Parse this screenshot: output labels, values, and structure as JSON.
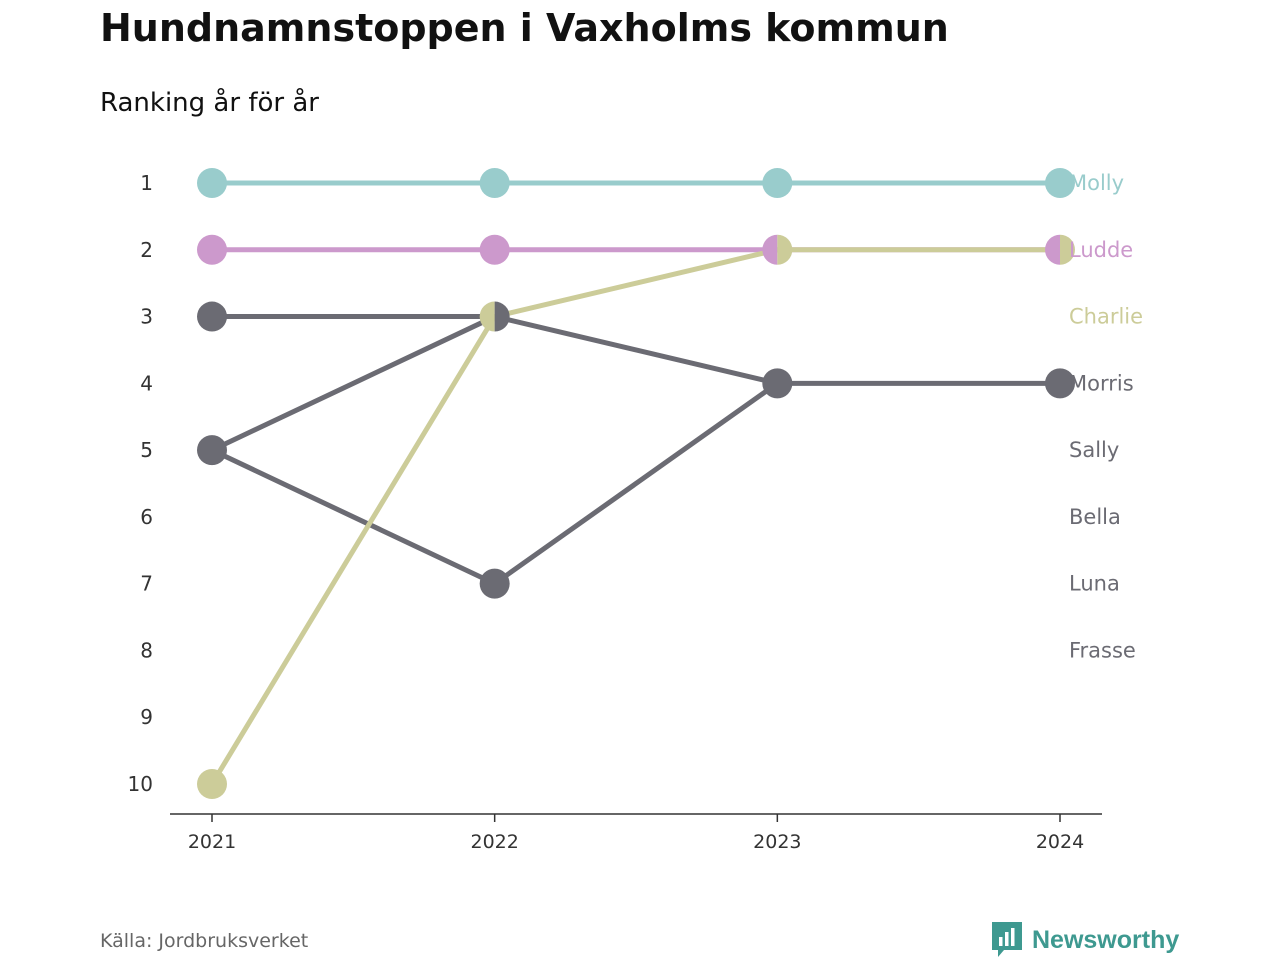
{
  "title": "Hundnamnstoppen i Vaxholms kommun",
  "subtitle": "Ranking år för år",
  "source": "Källa: Jordbruksverket",
  "brand": {
    "name": "Newsworthy",
    "icon": "newsworthy-logo-icon",
    "color": "#3e9990"
  },
  "chart_data": {
    "type": "line",
    "x": [
      2021,
      2022,
      2023,
      2024
    ],
    "x_tick_labels": [
      "2021",
      "2022",
      "2023",
      "2024"
    ],
    "y_tick_labels": [
      "1",
      "2",
      "3",
      "4",
      "5",
      "6",
      "7",
      "8",
      "9",
      "10"
    ],
    "ylim": [
      1,
      10
    ],
    "y_inverted": true,
    "grid": false,
    "legend": "end-labels-right",
    "series": [
      {
        "name": "Molly",
        "values": [
          1,
          1,
          1,
          1
        ],
        "color": "#99cccc"
      },
      {
        "name": "Ludde",
        "values": [
          2,
          2,
          2,
          2
        ],
        "color": "#cc99cc"
      },
      {
        "name": "Charlie",
        "values": [
          10,
          3,
          2,
          2
        ],
        "color": "#cccc99"
      },
      {
        "name": "Morris",
        "values": [
          3,
          3,
          4,
          4
        ],
        "color": "#6b6b73"
      },
      {
        "name": "Sally",
        "values": [
          5,
          7,
          4,
          null
        ],
        "color": "#6b6b73"
      },
      {
        "name": "Bella",
        "values": [
          5,
          3,
          null,
          null
        ],
        "color": "#6b6b73"
      },
      {
        "name": "Luna",
        "values": [
          null,
          null,
          null,
          null
        ],
        "color": "#6b6b73"
      },
      {
        "name": "Frasse",
        "values": [
          null,
          null,
          null,
          null
        ],
        "color": "#6b6b73"
      }
    ]
  }
}
